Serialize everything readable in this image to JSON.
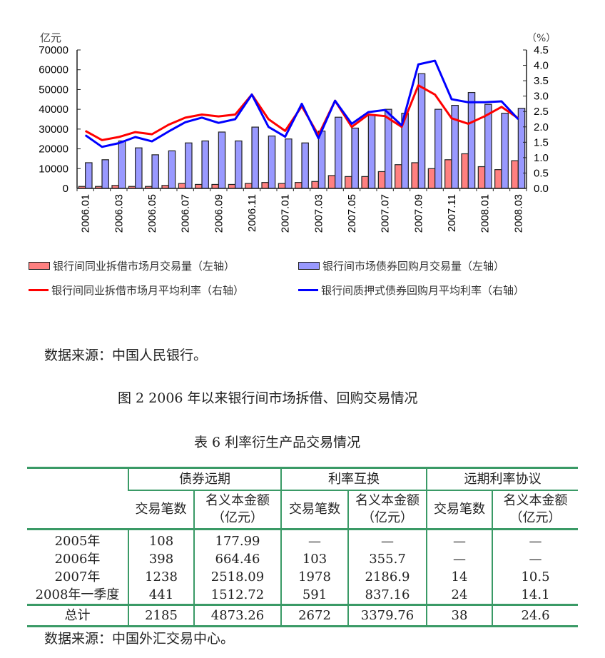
{
  "chart_data": {
    "type": "bar+line",
    "left_unit": "亿元",
    "right_unit": "（%）",
    "left_ylim": [
      0,
      70000
    ],
    "right_ylim": [
      0,
      4.5
    ],
    "left_ticks": [
      "0",
      "10000",
      "20000",
      "30000",
      "40000",
      "50000",
      "60000",
      "70000"
    ],
    "right_ticks": [
      "0.0",
      "0.5",
      "1.0",
      "1.5",
      "2.0",
      "2.5",
      "3.0",
      "3.5",
      "4.0",
      "4.5"
    ],
    "categories": [
      "2006.01",
      "2006.02",
      "2006.03",
      "2006.04",
      "2006.05",
      "2006.06",
      "2006.07",
      "2006.08",
      "2006.09",
      "2006.10",
      "2006.11",
      "2006.12",
      "2007.01",
      "2007.02",
      "2007.03",
      "2007.04",
      "2007.05",
      "2007.06",
      "2007.07",
      "2007.08",
      "2007.09",
      "2007.10",
      "2007.11",
      "2007.12",
      "2008.01",
      "2008.02",
      "2008.03"
    ],
    "x_tick_labels": [
      "2006.01",
      "2006.03",
      "2006.05",
      "2006.07",
      "2006.09",
      "2006.11",
      "2007.01",
      "2007.03",
      "2007.05",
      "2007.07",
      "2007.09",
      "2007.11",
      "2008.01",
      "2008.03"
    ],
    "series": [
      {
        "name": "银行间同业拆借市场月交易量（左轴）",
        "type": "bar",
        "axis": "left",
        "color": "#ff8080",
        "values": [
          1000,
          1000,
          1500,
          1000,
          1000,
          1500,
          2500,
          2000,
          2000,
          2000,
          2500,
          3000,
          2500,
          3000,
          3500,
          6500,
          6000,
          6000,
          8500,
          12000,
          13000,
          10000,
          14500,
          17500,
          11000,
          9500,
          14000
        ]
      },
      {
        "name": "银行间市场债券回购月交易量（左轴）",
        "type": "bar",
        "axis": "left",
        "color": "#9999ff",
        "values": [
          13000,
          14500,
          24000,
          20500,
          17000,
          19000,
          23000,
          24000,
          28500,
          24000,
          31000,
          26500,
          25000,
          23000,
          29000,
          36000,
          30500,
          37000,
          40000,
          38000,
          58000,
          40000,
          42000,
          48500,
          42500,
          38000,
          40500
        ]
      },
      {
        "name": "银行间同业拆借市场月平均利率（右轴）",
        "type": "line",
        "axis": "right",
        "color": "#ff0000",
        "values": [
          1.87,
          1.57,
          1.67,
          1.83,
          1.76,
          2.07,
          2.3,
          2.4,
          2.34,
          2.4,
          3.05,
          2.25,
          1.87,
          2.67,
          1.73,
          2.85,
          2.0,
          2.4,
          2.35,
          2.0,
          3.35,
          3.05,
          2.28,
          2.1,
          2.35,
          2.65,
          2.28
        ]
      },
      {
        "name": "银行间质押式债券回购月平均利率（右轴）",
        "type": "line",
        "axis": "right",
        "color": "#0000ff",
        "values": [
          1.73,
          1.35,
          1.47,
          1.67,
          1.53,
          1.85,
          2.15,
          2.3,
          2.13,
          2.25,
          3.05,
          2.0,
          1.68,
          2.75,
          1.63,
          2.85,
          2.1,
          2.48,
          2.55,
          2.05,
          4.03,
          4.15,
          2.9,
          2.8,
          2.8,
          2.83,
          2.25
        ]
      }
    ]
  },
  "source1": "数据来源：中国人民银行。",
  "figure_caption": "图  2  2006 年以来银行间市场拆借、回购交易情况",
  "table_caption": "表  6  利率衍生产品交易情况",
  "table": {
    "groups": [
      "债券远期",
      "利率互换",
      "远期利率协议"
    ],
    "sub": [
      "交易笔数",
      "名义本金额",
      "（亿元）"
    ],
    "rows": [
      [
        "2005年",
        "108",
        "177.99",
        "—",
        "—",
        "—",
        "—"
      ],
      [
        "2006年",
        "398",
        "664.46",
        "103",
        "355.7",
        "—",
        "—"
      ],
      [
        "2007年",
        "1238",
        "2518.09",
        "1978",
        "2186.9",
        "14",
        "10.5"
      ],
      [
        "2008年一季度",
        "441",
        "1512.72",
        "591",
        "837.16",
        "24",
        "14.1"
      ]
    ],
    "total": [
      "总计",
      "2185",
      "4873.26",
      "2672",
      "3379.76",
      "38",
      "24.6"
    ]
  },
  "source2": "数据来源：中国外汇交易中心。"
}
